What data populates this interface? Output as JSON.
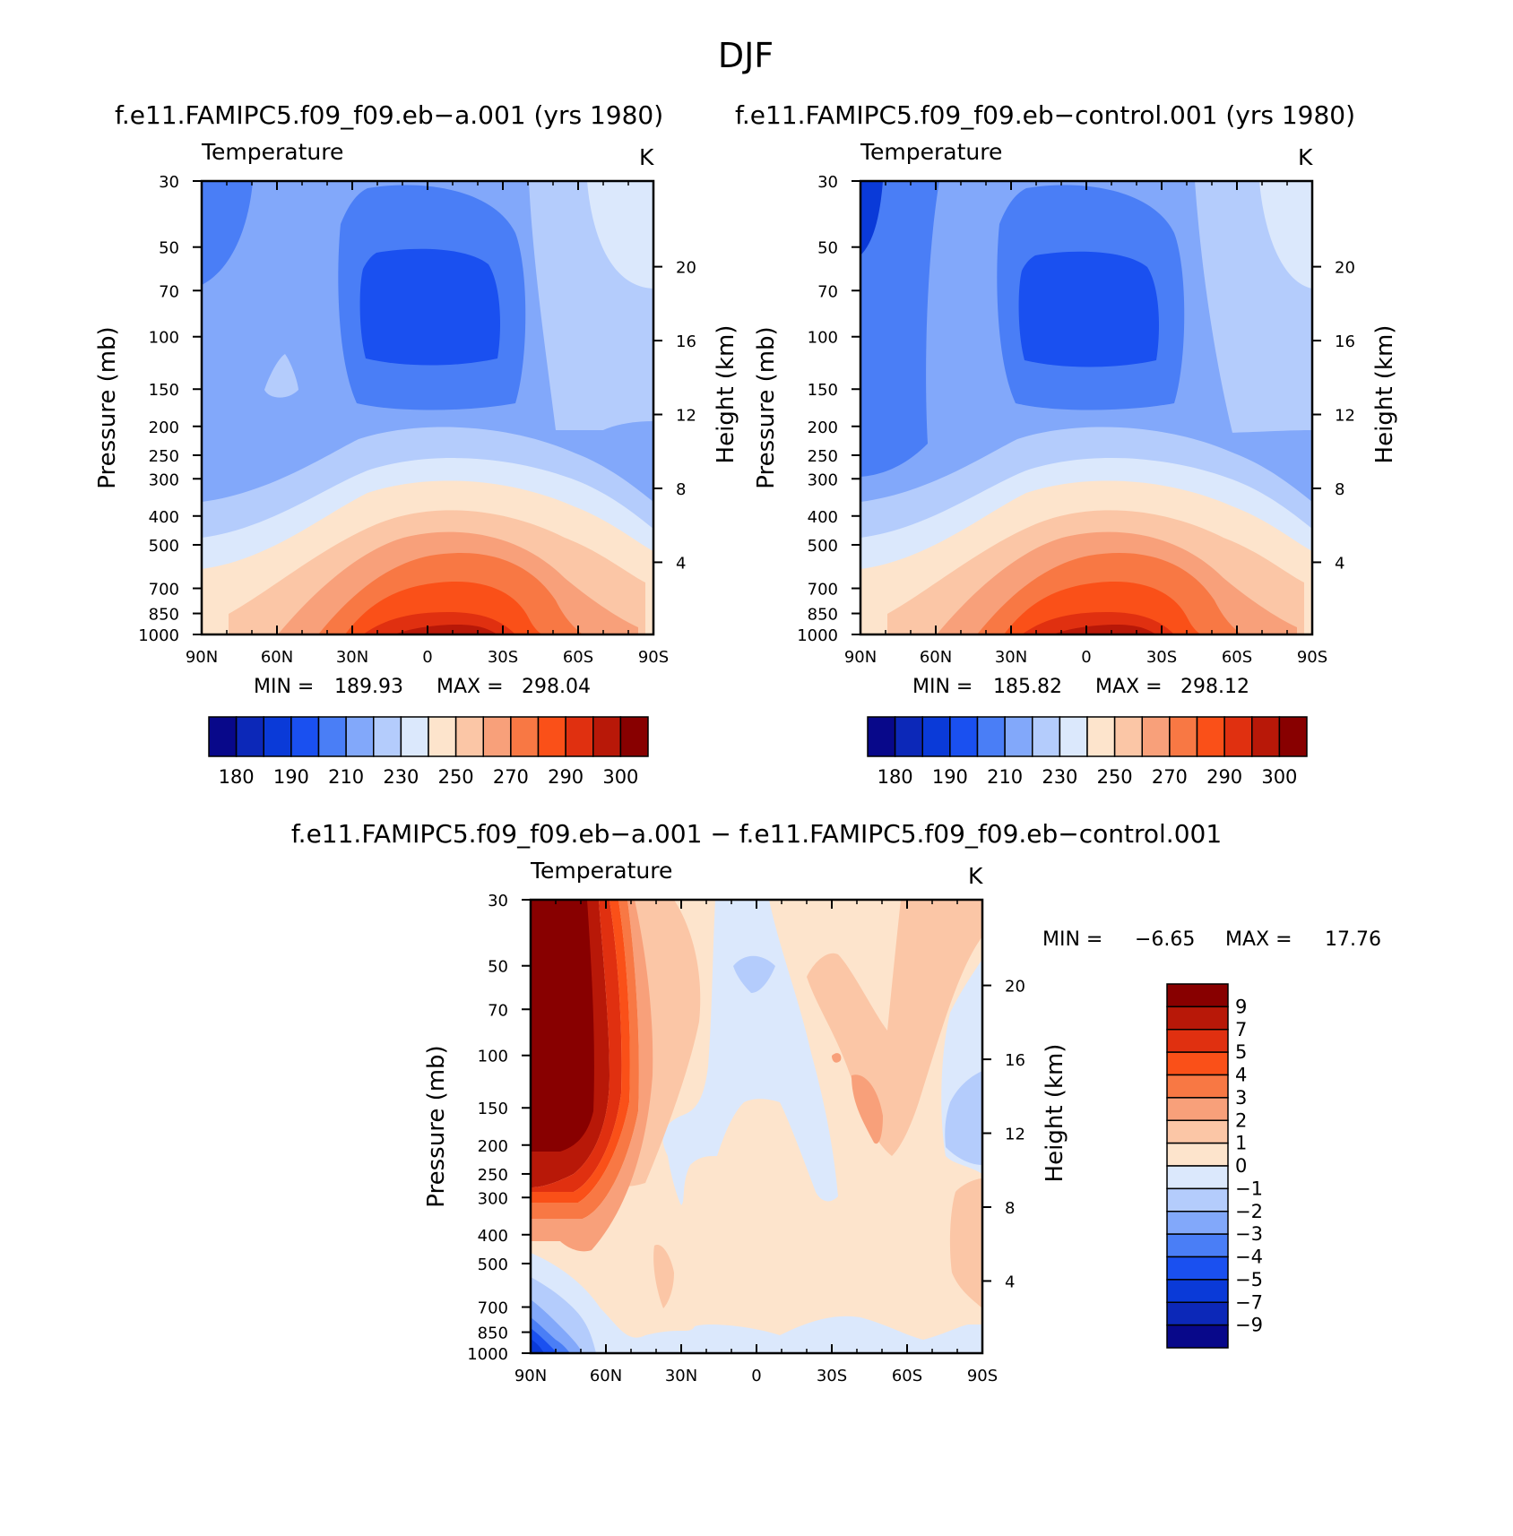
{
  "page_title": "DJF",
  "chart_data": [
    {
      "type": "heatmap",
      "title": "f.e11.FAMIPC5.f09_f09.eb−a.001 (yrs 1980)",
      "variable": "Temperature",
      "units": "K",
      "xlabel": "",
      "ylabel": "Pressure (mb)",
      "y2label": "Height (km)",
      "x_ticks": [
        "90N",
        "60N",
        "30N",
        "0",
        "30S",
        "60S",
        "90S"
      ],
      "y_ticks": [
        30,
        50,
        70,
        100,
        150,
        200,
        250,
        300,
        400,
        500,
        700,
        850,
        1000
      ],
      "y2_ticks": [
        20,
        16,
        12,
        8,
        4
      ],
      "min_label": "MIN =",
      "min_value": "189.93",
      "max_label": "MAX =",
      "max_value": "298.04",
      "colorbar_labels": [
        "180",
        "190",
        "210",
        "230",
        "250",
        "270",
        "290",
        "300"
      ],
      "colorbar_colors": [
        "#08088a",
        "#0c28b8",
        "#0a3ad8",
        "#1a50f0",
        "#4a7ef6",
        "#82a8fa",
        "#b4ccfc",
        "#dbe8fc",
        "#fde4cc",
        "#fbc6a6",
        "#f8a07a",
        "#f87844",
        "#fa5018",
        "#e03010",
        "#b81808",
        "#880000"
      ]
    },
    {
      "type": "heatmap",
      "title": "f.e11.FAMIPC5.f09_f09.eb−control.001 (yrs 1980)",
      "variable": "Temperature",
      "units": "K",
      "xlabel": "",
      "ylabel": "Pressure (mb)",
      "y2label": "Height (km)",
      "x_ticks": [
        "90N",
        "60N",
        "30N",
        "0",
        "30S",
        "60S",
        "90S"
      ],
      "y_ticks": [
        30,
        50,
        70,
        100,
        150,
        200,
        250,
        300,
        400,
        500,
        700,
        850,
        1000
      ],
      "y2_ticks": [
        20,
        16,
        12,
        8,
        4
      ],
      "min_label": "MIN =",
      "min_value": "185.82",
      "max_label": "MAX =",
      "max_value": "298.12",
      "colorbar_labels": [
        "180",
        "190",
        "210",
        "230",
        "250",
        "270",
        "290",
        "300"
      ],
      "colorbar_colors": [
        "#08088a",
        "#0c28b8",
        "#0a3ad8",
        "#1a50f0",
        "#4a7ef6",
        "#82a8fa",
        "#b4ccfc",
        "#dbe8fc",
        "#fde4cc",
        "#fbc6a6",
        "#f8a07a",
        "#f87844",
        "#fa5018",
        "#e03010",
        "#b81808",
        "#880000"
      ]
    },
    {
      "type": "heatmap",
      "title": "f.e11.FAMIPC5.f09_f09.eb−a.001 − f.e11.FAMIPC5.f09_f09.eb−control.001",
      "variable": "Temperature",
      "units": "K",
      "xlabel": "",
      "ylabel": "Pressure (mb)",
      "y2label": "Height (km)",
      "x_ticks": [
        "90N",
        "60N",
        "30N",
        "0",
        "30S",
        "60S",
        "90S"
      ],
      "y_ticks": [
        30,
        50,
        70,
        100,
        150,
        200,
        250,
        300,
        400,
        500,
        700,
        850,
        1000
      ],
      "y2_ticks": [
        20,
        16,
        12,
        8,
        4
      ],
      "min_label": "MIN =",
      "min_value": "−6.65",
      "max_label": "MAX =",
      "max_value": "17.76",
      "colorbar_labels": [
        "9",
        "7",
        "5",
        "4",
        "3",
        "2",
        "1",
        "0",
        "−1",
        "−2",
        "−3",
        "−4",
        "−5",
        "−7",
        "−9"
      ],
      "colorbar_colors": [
        "#880000",
        "#b81808",
        "#e03010",
        "#fa5018",
        "#f87844",
        "#f8a07a",
        "#fbc6a6",
        "#fde4cc",
        "#dbe8fc",
        "#b4ccfc",
        "#82a8fa",
        "#4a7ef6",
        "#1a50f0",
        "#0a3ad8",
        "#0c28b8",
        "#08088a"
      ]
    }
  ]
}
